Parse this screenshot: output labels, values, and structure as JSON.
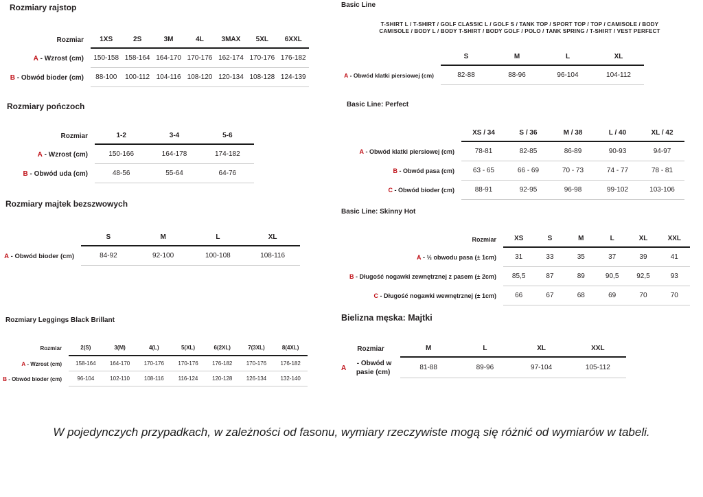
{
  "colors": {
    "accent_red": "#c01118",
    "text": "#231f20",
    "header_line": "#1b1b1b",
    "row_line": "#c9c9c9"
  },
  "note": "W pojedynczych przypadkach, w zależności od fasonu, wymiary rzeczywiste mogą się różnić od wymiarów w tabeli.",
  "sections": [
    {
      "id": "rajstopy",
      "title": "Rozmiary rajstop",
      "size_label": "Rozmiar",
      "columns": [
        "1XS",
        "2S",
        "3M",
        "4L",
        "3MAX",
        "5XL",
        "6XXL"
      ],
      "rows": [
        {
          "letter": "A",
          "label": "- Wzrost (cm)",
          "values": [
            "150-158",
            "158-164",
            "164-170",
            "170-176",
            "162-174",
            "170-176",
            "176-182"
          ]
        },
        {
          "letter": "B",
          "label": "- Obwód bioder (cm)",
          "values": [
            "88-100",
            "100-112",
            "104-116",
            "108-120",
            "120-134",
            "108-128",
            "124-139"
          ]
        }
      ]
    },
    {
      "id": "ponczochy",
      "title": "Rozmiary pończoch",
      "size_label": "Rozmiar",
      "columns": [
        "1-2",
        "3-4",
        "5-6"
      ],
      "rows": [
        {
          "letter": "A",
          "label": "- Wzrost (cm)",
          "values": [
            "150-166",
            "164-178",
            "174-182"
          ]
        },
        {
          "letter": "B",
          "label": "- Obwód uda (cm)",
          "values": [
            "48-56",
            "55-64",
            "64-76"
          ]
        }
      ]
    },
    {
      "id": "majtki-bezszwowe",
      "title": "Rozmiary majtek bezszwowych",
      "size_label": "",
      "columns": [
        "S",
        "M",
        "L",
        "XL"
      ],
      "rows": [
        {
          "letter": "A",
          "label": "- Obwód bioder (cm)",
          "values": [
            "84-92",
            "92-100",
            "100-108",
            "108-116"
          ]
        }
      ]
    },
    {
      "id": "leggings",
      "title": "Rozmiary Leggings Black Brillant",
      "size_label": "Rozmiar",
      "columns": [
        "2(S)",
        "3(M)",
        "4(L)",
        "5(XL)",
        "6(2XL)",
        "7(3XL)",
        "8(4XL)"
      ],
      "rows": [
        {
          "letter": "A",
          "label": "- Wzrost (cm)",
          "values": [
            "158-164",
            "164-170",
            "170-176",
            "170-176",
            "176-182",
            "170-176",
            "176-182"
          ]
        },
        {
          "letter": "B",
          "label": "- Obwód bioder (cm)",
          "values": [
            "96-104",
            "102-110",
            "108-116",
            "116-124",
            "120-128",
            "126-134",
            "132-140"
          ]
        }
      ]
    },
    {
      "id": "basic-line",
      "title": "Basic Line",
      "subtitle_lines": [
        "T-SHIRT L / T-SHIRT / GOLF CLASSIC L / GOLF S / TANK TOP / SPORT TOP / TOP / CAMISOLE / BODY",
        "CAMISOLE / BODY L / BODY T-SHIRT / BODY GOLF / POLO / TANK SPRING / T-SHIRT / VEST PERFECT"
      ],
      "size_label": "",
      "columns": [
        "S",
        "M",
        "L",
        "XL"
      ],
      "rows": [
        {
          "letter": "A",
          "label": "- Obwód klatki piersiowej (cm)",
          "values": [
            "82-88",
            "88-96",
            "96-104",
            "104-112"
          ]
        }
      ]
    },
    {
      "id": "perfect",
      "title": "Basic Line: Perfect",
      "size_label": "",
      "columns": [
        "XS / 34",
        "S / 36",
        "M / 38",
        "L / 40",
        "XL / 42"
      ],
      "rows": [
        {
          "letter": "A",
          "label": "- Obwód klatki piersiowej (cm)",
          "values": [
            "78-81",
            "82-85",
            "86-89",
            "90-93",
            "94-97"
          ]
        },
        {
          "letter": "B",
          "label": "- Obwód pasa (cm)",
          "values": [
            "63 - 65",
            "66 - 69",
            "70 - 73",
            "74 - 77",
            "78 - 81"
          ]
        },
        {
          "letter": "C",
          "label": "- Obwód bioder (cm)",
          "values": [
            "88-91",
            "92-95",
            "96-98",
            "99-102",
            "103-106"
          ]
        }
      ]
    },
    {
      "id": "skinny-hot",
      "title": "Basic Line: Skinny Hot",
      "size_label": "Rozmiar",
      "columns": [
        "XS",
        "S",
        "M",
        "L",
        "XL",
        "XXL"
      ],
      "rows": [
        {
          "letter": "A",
          "label": "- ½ obwodu pasa (± 1cm)",
          "values": [
            "31",
            "33",
            "35",
            "37",
            "39",
            "41"
          ]
        },
        {
          "letter": "B",
          "label": "- Długość nogawki zewnętrznej z pasem (± 2cm)",
          "values": [
            "85,5",
            "87",
            "89",
            "90,5",
            "92,5",
            "93"
          ]
        },
        {
          "letter": "C",
          "label": "- Długość nogawki wewnętrznej (± 1cm)",
          "values": [
            "66",
            "67",
            "68",
            "69",
            "70",
            "70"
          ]
        }
      ]
    },
    {
      "id": "majtki-meskie",
      "title": "Bielizna męska: Majtki",
      "size_label": "Rozmiar",
      "columns": [
        "M",
        "L",
        "XL",
        "XXL"
      ],
      "rows": [
        {
          "letter": "A",
          "label": "- Obwód w pasie (cm)",
          "values": [
            "81-88",
            "89-96",
            "97-104",
            "105-112"
          ]
        }
      ]
    }
  ]
}
